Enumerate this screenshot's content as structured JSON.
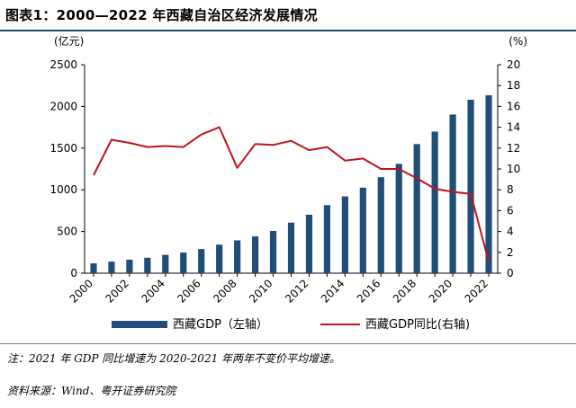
{
  "title": "图表1：2000—2022 年西藏自治区经济发展情况",
  "note": "注：2021 年 GDP 同比增速为 2020-2021 年两年不变价平均增速。",
  "source": "资料来源：Wind、粤开证券研究院",
  "colors": {
    "bar": "#1f4e79",
    "line": "#c0141c",
    "rule": "#1f4e79"
  },
  "chart_data": {
    "type": "bar",
    "categories": [
      "2000",
      "2001",
      "2002",
      "2003",
      "2004",
      "2005",
      "2006",
      "2007",
      "2008",
      "2009",
      "2010",
      "2011",
      "2012",
      "2013",
      "2014",
      "2015",
      "2016",
      "2017",
      "2018",
      "2019",
      "2020",
      "2021",
      "2022"
    ],
    "x_tick_labels": [
      "2000",
      "2002",
      "2004",
      "2006",
      "2008",
      "2010",
      "2012",
      "2014",
      "2016",
      "2018",
      "2020",
      "2022"
    ],
    "y_left": {
      "unit": "(亿元)",
      "range": [
        0,
        2500
      ],
      "ticks": [
        "0",
        "500",
        "1000",
        "1500",
        "2000",
        "2500"
      ]
    },
    "y_right": {
      "unit": "(%)",
      "range": [
        0,
        20
      ],
      "ticks": [
        "0",
        "2",
        "4",
        "6",
        "8",
        "10",
        "12",
        "14",
        "16",
        "18",
        "20"
      ]
    },
    "grid": false,
    "legend_position": "bottom",
    "series": [
      {
        "name": "西藏GDP（左轴）",
        "type": "bar",
        "axis": "left",
        "values": [
          118,
          139,
          162,
          185,
          220,
          248,
          290,
          342,
          394,
          441,
          507,
          606,
          701,
          816,
          921,
          1026,
          1151,
          1311,
          1548,
          1698,
          1903,
          2080,
          2133
        ]
      },
      {
        "name": "西藏GDP同比(右轴)",
        "type": "line",
        "axis": "right",
        "values": [
          9.4,
          12.8,
          12.5,
          12.1,
          12.2,
          12.1,
          13.3,
          14.0,
          10.1,
          12.4,
          12.3,
          12.7,
          11.8,
          12.1,
          10.8,
          11.0,
          10.0,
          10.0,
          9.1,
          8.1,
          7.8,
          7.6,
          1.1
        ]
      }
    ]
  }
}
